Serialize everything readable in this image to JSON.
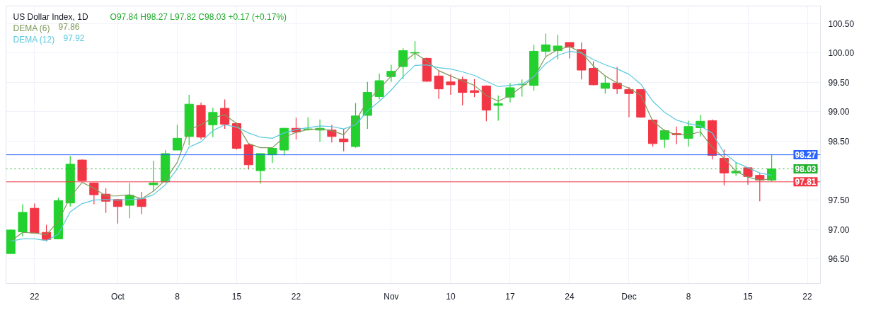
{
  "chart_data": {
    "type": "candlestick",
    "title": "US Dollar Index, 1D",
    "annotations": [
      "O97.84  H98.27  L97.82  C98.03  +0.17 (+0.17%)",
      "97.86",
      "97.92"
    ],
    "categories": [
      null,
      null,
      "22",
      null,
      null,
      null,
      null,
      null,
      null,
      "Oct",
      null,
      null,
      null,
      null,
      "8",
      null,
      null,
      null,
      null,
      "15",
      null,
      null,
      null,
      null,
      "22",
      null,
      null,
      null,
      null,
      null,
      null,
      null,
      "Nov",
      null,
      null,
      null,
      null,
      "10",
      null,
      null,
      null,
      null,
      "17",
      null,
      null,
      null,
      null,
      "24",
      null,
      null,
      null,
      null,
      "Dec",
      null,
      null,
      null,
      null,
      "8",
      null,
      null,
      null,
      null,
      "15",
      null,
      null,
      null,
      null,
      "22"
    ],
    "ohlc": [
      [
        96.59,
        97.0,
        96.59,
        96.99
      ],
      [
        96.96,
        97.43,
        96.88,
        97.29
      ],
      [
        97.36,
        97.44,
        96.94,
        96.94
      ],
      [
        96.95,
        97.08,
        96.8,
        96.83
      ],
      [
        96.84,
        97.54,
        96.84,
        97.49
      ],
      [
        97.45,
        98.25,
        97.39,
        98.11
      ],
      [
        98.18,
        98.19,
        97.82,
        97.83
      ],
      [
        97.79,
        97.8,
        97.43,
        97.59
      ],
      [
        97.6,
        97.7,
        97.28,
        97.48
      ],
      [
        97.51,
        97.52,
        97.1,
        97.39
      ],
      [
        97.41,
        97.79,
        97.19,
        97.58
      ],
      [
        97.52,
        97.64,
        97.26,
        97.39
      ],
      [
        97.76,
        98.17,
        97.65,
        97.79
      ],
      [
        97.81,
        98.35,
        97.8,
        98.29
      ],
      [
        98.35,
        98.78,
        98.35,
        98.55
      ],
      [
        98.58,
        99.29,
        98.43,
        99.13
      ],
      [
        99.11,
        99.16,
        98.53,
        98.57
      ],
      [
        98.78,
        99.07,
        98.57,
        98.99
      ],
      [
        99.06,
        99.21,
        98.71,
        98.79
      ],
      [
        98.8,
        98.82,
        98.36,
        98.38
      ],
      [
        98.44,
        98.46,
        98.02,
        98.1
      ],
      [
        98.0,
        98.3,
        97.78,
        98.29
      ],
      [
        98.27,
        98.38,
        98.13,
        98.38
      ],
      [
        98.35,
        98.73,
        98.26,
        98.72
      ],
      [
        98.72,
        98.9,
        98.53,
        98.66
      ],
      [
        98.7,
        98.91,
        98.68,
        98.71
      ],
      [
        98.69,
        98.87,
        98.49,
        98.72
      ],
      [
        98.69,
        98.78,
        98.48,
        98.58
      ],
      [
        98.54,
        98.71,
        98.33,
        98.49
      ],
      [
        98.41,
        99.15,
        98.39,
        98.93
      ],
      [
        98.94,
        99.51,
        98.71,
        99.33
      ],
      [
        99.26,
        99.65,
        99.21,
        99.53
      ],
      [
        99.6,
        99.8,
        99.51,
        99.69
      ],
      [
        99.77,
        100.08,
        99.56,
        100.04
      ],
      [
        100.0,
        100.2,
        99.89,
        100.01
      ],
      [
        99.91,
        99.92,
        99.51,
        99.52
      ],
      [
        99.61,
        99.71,
        99.22,
        99.39
      ],
      [
        99.51,
        99.64,
        99.29,
        99.46
      ],
      [
        99.55,
        99.6,
        99.11,
        99.33
      ],
      [
        99.36,
        99.56,
        99.25,
        99.33
      ],
      [
        99.44,
        99.45,
        98.84,
        99.03
      ],
      [
        99.11,
        99.28,
        98.85,
        99.14
      ],
      [
        99.25,
        99.49,
        99.16,
        99.41
      ],
      [
        99.46,
        99.55,
        99.26,
        99.47
      ],
      [
        99.45,
        100.14,
        99.36,
        100.03
      ],
      [
        100.03,
        100.33,
        99.93,
        100.14
      ],
      [
        100.04,
        100.31,
        99.89,
        100.12
      ],
      [
        100.18,
        100.18,
        99.91,
        100.1
      ],
      [
        100.06,
        100.18,
        99.55,
        99.71
      ],
      [
        99.74,
        99.86,
        99.45,
        99.46
      ],
      [
        99.4,
        99.62,
        99.31,
        99.49
      ],
      [
        99.49,
        99.76,
        99.3,
        99.39
      ],
      [
        99.38,
        99.42,
        98.91,
        99.31
      ],
      [
        99.38,
        99.38,
        98.9,
        98.91
      ],
      [
        98.86,
        98.87,
        98.41,
        98.46
      ],
      [
        98.53,
        98.7,
        98.39,
        98.68
      ],
      [
        98.63,
        98.75,
        98.45,
        98.61
      ],
      [
        98.55,
        98.85,
        98.41,
        98.75
      ],
      [
        98.73,
        98.95,
        98.58,
        98.84
      ],
      [
        98.85,
        98.87,
        98.19,
        98.26
      ],
      [
        98.21,
        98.36,
        97.75,
        97.96
      ],
      [
        97.96,
        98.14,
        97.91,
        97.99
      ],
      [
        98.05,
        98.06,
        97.76,
        97.9
      ],
      [
        97.92,
        97.96,
        97.48,
        97.84
      ],
      [
        97.84,
        98.27,
        97.82,
        98.03
      ],
      null,
      null,
      null
    ],
    "series": [
      {
        "name": "DEMA (6)",
        "type": "line",
        "color": "#7f9a5b",
        "values": [
          96.8,
          96.95,
          96.94,
          96.91,
          97.14,
          97.55,
          97.8,
          97.7,
          97.57,
          97.57,
          97.59,
          97.52,
          97.65,
          97.84,
          98.14,
          98.7,
          98.78,
          98.9,
          98.95,
          98.8,
          98.46,
          98.39,
          98.39,
          98.57,
          98.65,
          98.7,
          98.71,
          98.68,
          98.61,
          98.85,
          99.18,
          99.39,
          99.61,
          99.83,
          100.0,
          99.86,
          99.7,
          99.61,
          99.53,
          99.45,
          99.28,
          99.18,
          99.28,
          99.43,
          99.58,
          99.94,
          100.06,
          100.11,
          100.01,
          99.78,
          99.61,
          99.49,
          99.4,
          99.28,
          98.84,
          98.68,
          98.61,
          98.61,
          98.66,
          98.4,
          98.21,
          97.99,
          97.89,
          97.84,
          97.86,
          null,
          null,
          null
        ]
      },
      {
        "name": "DEMA (12)",
        "type": "line",
        "color": "#5ac8dc",
        "values": [
          96.8,
          96.84,
          96.84,
          96.81,
          96.92,
          97.3,
          97.44,
          97.5,
          97.51,
          97.5,
          97.51,
          97.52,
          97.59,
          97.76,
          98.03,
          98.4,
          98.49,
          98.68,
          98.78,
          98.74,
          98.64,
          98.57,
          98.55,
          98.64,
          98.7,
          98.73,
          98.76,
          98.75,
          98.71,
          98.78,
          99.01,
          99.18,
          99.37,
          99.6,
          99.79,
          99.8,
          99.75,
          99.73,
          99.68,
          99.62,
          99.52,
          99.43,
          99.45,
          99.47,
          99.6,
          99.82,
          99.96,
          100.03,
          100.0,
          99.89,
          99.8,
          99.73,
          99.64,
          99.47,
          99.18,
          98.99,
          98.86,
          98.8,
          98.76,
          98.64,
          98.3,
          98.14,
          98.05,
          97.96,
          97.92,
          null,
          null,
          null
        ]
      }
    ],
    "ref_lines": [
      {
        "axis": "y",
        "value": 98.27,
        "label": "98.27",
        "color": "#2962ff",
        "line_style": "solid"
      },
      {
        "axis": "y",
        "value": 98.03,
        "label": "98.03",
        "color": "#22b02e",
        "line_style": "dotted"
      },
      {
        "axis": "y",
        "value": 97.81,
        "label": "97.81",
        "color": "#f23645",
        "line_style": "solid"
      }
    ],
    "ylim": [
      96.08,
      100.8
    ],
    "yticks": [
      {
        "value": 96.5,
        "label": "96.50"
      },
      {
        "value": 97.0,
        "label": "97.00"
      },
      {
        "value": 97.5,
        "label": "97.50"
      },
      {
        "value": 98.5,
        "label": "98.50"
      },
      {
        "value": 99.0,
        "label": "99.00"
      },
      {
        "value": 99.5,
        "label": "99.50"
      },
      {
        "value": 100.0,
        "label": "100.00"
      },
      {
        "value": 100.5,
        "label": "100.50"
      }
    ],
    "grid": true,
    "legend": "top left"
  }
}
